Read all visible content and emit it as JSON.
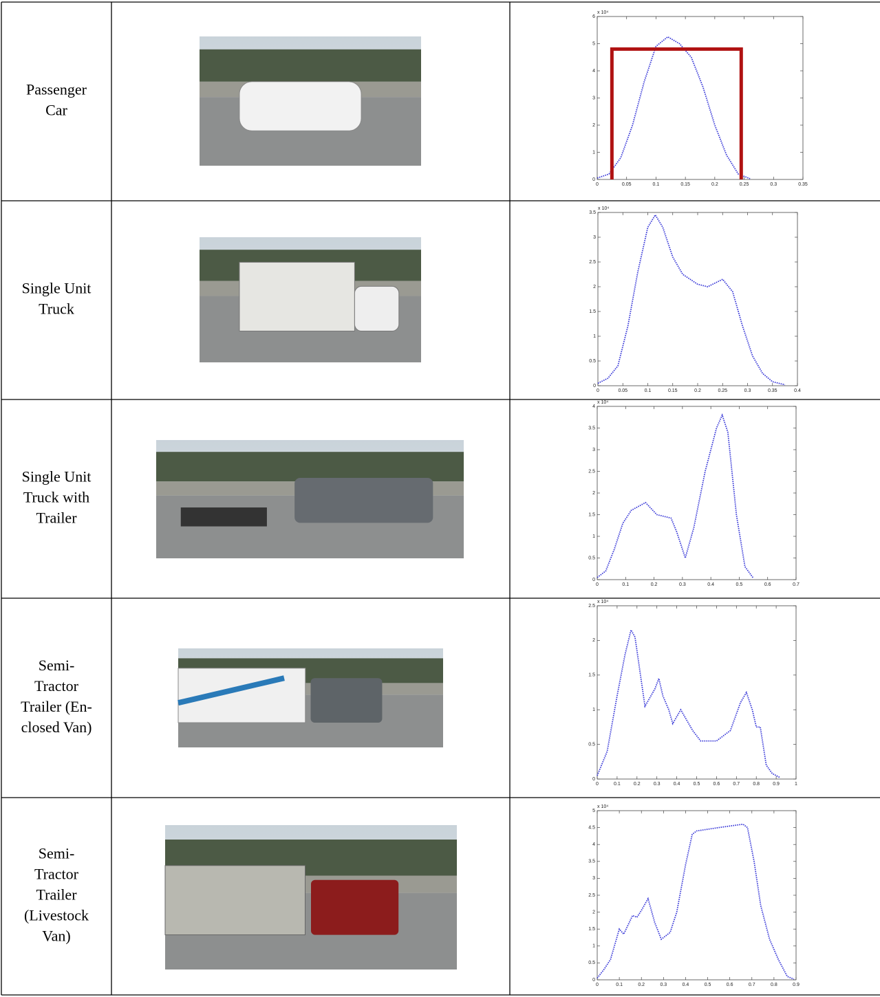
{
  "table": {
    "rows": [
      {
        "label": [
          "Passenger",
          "Car"
        ],
        "plot": {
          "type": "line",
          "multiplier": "x 10⁴",
          "xlim": [
            0,
            0.35
          ],
          "ylim": [
            0,
            6
          ],
          "xticks": [
            0,
            0.05,
            0.1,
            0.15,
            0.2,
            0.25,
            0.3,
            0.35
          ],
          "yticks": [
            0,
            1,
            2,
            3,
            4,
            5,
            6
          ],
          "color": "#3a3ad8",
          "x": [
            0,
            0.02,
            0.04,
            0.06,
            0.08,
            0.1,
            0.12,
            0.14,
            0.16,
            0.18,
            0.2,
            0.22,
            0.24,
            0.26
          ],
          "values": [
            0.05,
            0.2,
            0.8,
            2.0,
            3.6,
            4.9,
            5.25,
            5.0,
            4.5,
            3.4,
            2.0,
            0.9,
            0.2,
            0.03
          ],
          "box": {
            "x": [
              0.025,
              0.245
            ],
            "y": 4.8,
            "color": "#b01212"
          }
        }
      },
      {
        "label": [
          "Single Unit",
          "Truck"
        ],
        "plot": {
          "type": "line",
          "multiplier": "x 10⁴",
          "xlim": [
            0,
            0.4
          ],
          "ylim": [
            0,
            3.5
          ],
          "xticks": [
            0,
            0.05,
            0.1,
            0.15,
            0.2,
            0.25,
            0.3,
            0.35,
            0.4
          ],
          "yticks": [
            0,
            0.5,
            1,
            1.5,
            2,
            2.5,
            3,
            3.5
          ],
          "color": "#3a3ad8",
          "x": [
            0,
            0.02,
            0.04,
            0.06,
            0.08,
            0.1,
            0.115,
            0.13,
            0.15,
            0.17,
            0.2,
            0.22,
            0.25,
            0.27,
            0.29,
            0.31,
            0.33,
            0.35,
            0.375
          ],
          "values": [
            0.05,
            0.15,
            0.4,
            1.2,
            2.3,
            3.2,
            3.45,
            3.2,
            2.6,
            2.25,
            2.05,
            2.0,
            2.15,
            1.9,
            1.2,
            0.6,
            0.25,
            0.08,
            0.02
          ]
        }
      },
      {
        "label": [
          "Single Unit",
          "Truck with",
          "Trailer"
        ],
        "plot": {
          "type": "line",
          "multiplier": "x 10⁴",
          "xlim": [
            0,
            0.7
          ],
          "ylim": [
            0,
            4
          ],
          "xticks": [
            0,
            0.1,
            0.2,
            0.3,
            0.4,
            0.5,
            0.6,
            0.7
          ],
          "yticks": [
            0,
            0.5,
            1,
            1.5,
            2,
            2.5,
            3,
            3.5,
            4
          ],
          "color": "#3a3ad8",
          "x": [
            0,
            0.03,
            0.06,
            0.09,
            0.12,
            0.17,
            0.21,
            0.26,
            0.28,
            0.31,
            0.34,
            0.38,
            0.42,
            0.44,
            0.46,
            0.49,
            0.52,
            0.55
          ],
          "values": [
            0.05,
            0.2,
            0.7,
            1.3,
            1.6,
            1.78,
            1.5,
            1.42,
            1.1,
            0.5,
            1.2,
            2.5,
            3.5,
            3.8,
            3.4,
            1.5,
            0.3,
            0.03
          ]
        }
      },
      {
        "label": [
          "Semi-",
          "Tractor",
          "Trailer (En-",
          "closed Van)"
        ],
        "plot": {
          "type": "line",
          "multiplier": "x 10⁴",
          "xlim": [
            0,
            1
          ],
          "ylim": [
            0,
            2.5
          ],
          "xticks": [
            0,
            0.1,
            0.2,
            0.3,
            0.4,
            0.5,
            0.6,
            0.7,
            0.8,
            0.9,
            1
          ],
          "yticks": [
            0,
            0.5,
            1,
            1.5,
            2,
            2.5
          ],
          "color": "#3a3ad8",
          "x": [
            0,
            0.05,
            0.1,
            0.14,
            0.17,
            0.19,
            0.24,
            0.29,
            0.31,
            0.33,
            0.36,
            0.38,
            0.42,
            0.45,
            0.48,
            0.52,
            0.6,
            0.67,
            0.72,
            0.75,
            0.78,
            0.8,
            0.82,
            0.85,
            0.88,
            0.92
          ],
          "values": [
            0.05,
            0.4,
            1.2,
            1.8,
            2.15,
            2.05,
            1.05,
            1.3,
            1.45,
            1.2,
            1.0,
            0.8,
            1.0,
            0.85,
            0.7,
            0.55,
            0.55,
            0.7,
            1.1,
            1.25,
            1.0,
            0.75,
            0.75,
            0.2,
            0.08,
            0.02
          ]
        }
      },
      {
        "label": [
          "Semi-",
          "Tractor",
          "Trailer",
          "(Livestock",
          "Van)"
        ],
        "plot": {
          "type": "line",
          "multiplier": "x 10⁴",
          "xlim": [
            0,
            0.9
          ],
          "ylim": [
            0,
            5
          ],
          "xticks": [
            0,
            0.1,
            0.2,
            0.3,
            0.4,
            0.5,
            0.6,
            0.7,
            0.8,
            0.9
          ],
          "yticks": [
            0,
            0.5,
            1,
            1.5,
            2,
            2.5,
            3,
            3.5,
            4,
            4.5,
            5
          ],
          "color": "#3a3ad8",
          "x": [
            0,
            0.03,
            0.06,
            0.1,
            0.12,
            0.16,
            0.18,
            0.2,
            0.23,
            0.26,
            0.29,
            0.33,
            0.36,
            0.4,
            0.43,
            0.45,
            0.55,
            0.66,
            0.68,
            0.71,
            0.74,
            0.78,
            0.82,
            0.86,
            0.89
          ],
          "values": [
            0.05,
            0.3,
            0.6,
            1.5,
            1.35,
            1.9,
            1.85,
            2.05,
            2.4,
            1.7,
            1.2,
            1.4,
            2.0,
            3.4,
            4.3,
            4.4,
            4.5,
            4.6,
            4.5,
            3.5,
            2.2,
            1.2,
            0.6,
            0.1,
            0.02
          ]
        }
      }
    ]
  }
}
